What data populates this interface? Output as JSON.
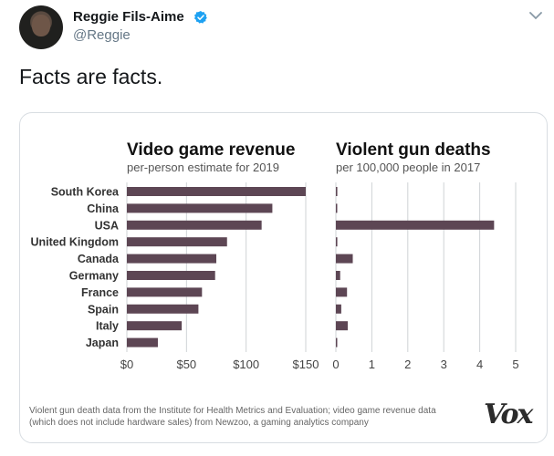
{
  "tweet": {
    "display_name": "Reggie Fils-Aime",
    "handle": "@Reggie",
    "text": "Facts are facts.",
    "avatar_icon": "profile-photo",
    "verified_icon": "verified-badge-icon",
    "menu_icon": "chevron-down-icon"
  },
  "colors": {
    "bar": "#5d4654",
    "grid": "#cfd3d6",
    "text": "#14171a",
    "sub": "#657786",
    "verified": "#1da1f2"
  },
  "chart_data": [
    {
      "type": "bar",
      "orientation": "horizontal",
      "title": "Video game revenue",
      "subtitle": "per-person estimate for 2019",
      "categories": [
        "South Korea",
        "China",
        "USA",
        "United Kingdom",
        "Canada",
        "Germany",
        "France",
        "Spain",
        "Italy",
        "Japan"
      ],
      "values": [
        150,
        122,
        113,
        84,
        75,
        74,
        63,
        60,
        46,
        26
      ],
      "xlim": [
        0,
        150
      ],
      "xticks": [
        "$0",
        "$50",
        "$100",
        "$150"
      ],
      "xtick_values": [
        0,
        50,
        100,
        150
      ],
      "grid": true
    },
    {
      "type": "bar",
      "orientation": "horizontal",
      "title": "Violent gun deaths",
      "subtitle": "per 100,000 people in 2017",
      "categories": [
        "South Korea",
        "China",
        "USA",
        "United Kingdom",
        "Canada",
        "Germany",
        "France",
        "Spain",
        "Italy",
        "Japan"
      ],
      "values": [
        0.04,
        0.02,
        4.4,
        0.04,
        0.47,
        0.12,
        0.31,
        0.15,
        0.33,
        0.02
      ],
      "xlim": [
        0,
        5
      ],
      "xticks": [
        "0",
        "1",
        "2",
        "3",
        "4",
        "5"
      ],
      "xtick_values": [
        0,
        1,
        2,
        3,
        4,
        5
      ],
      "grid": true
    }
  ],
  "footnote_lines": [
    "Violent gun death data from the Institute for Health Metrics and Evaluation; video game revenue data",
    "(which does not include hardware sales) from Newzoo, a gaming analytics company"
  ],
  "brand": "Vox"
}
